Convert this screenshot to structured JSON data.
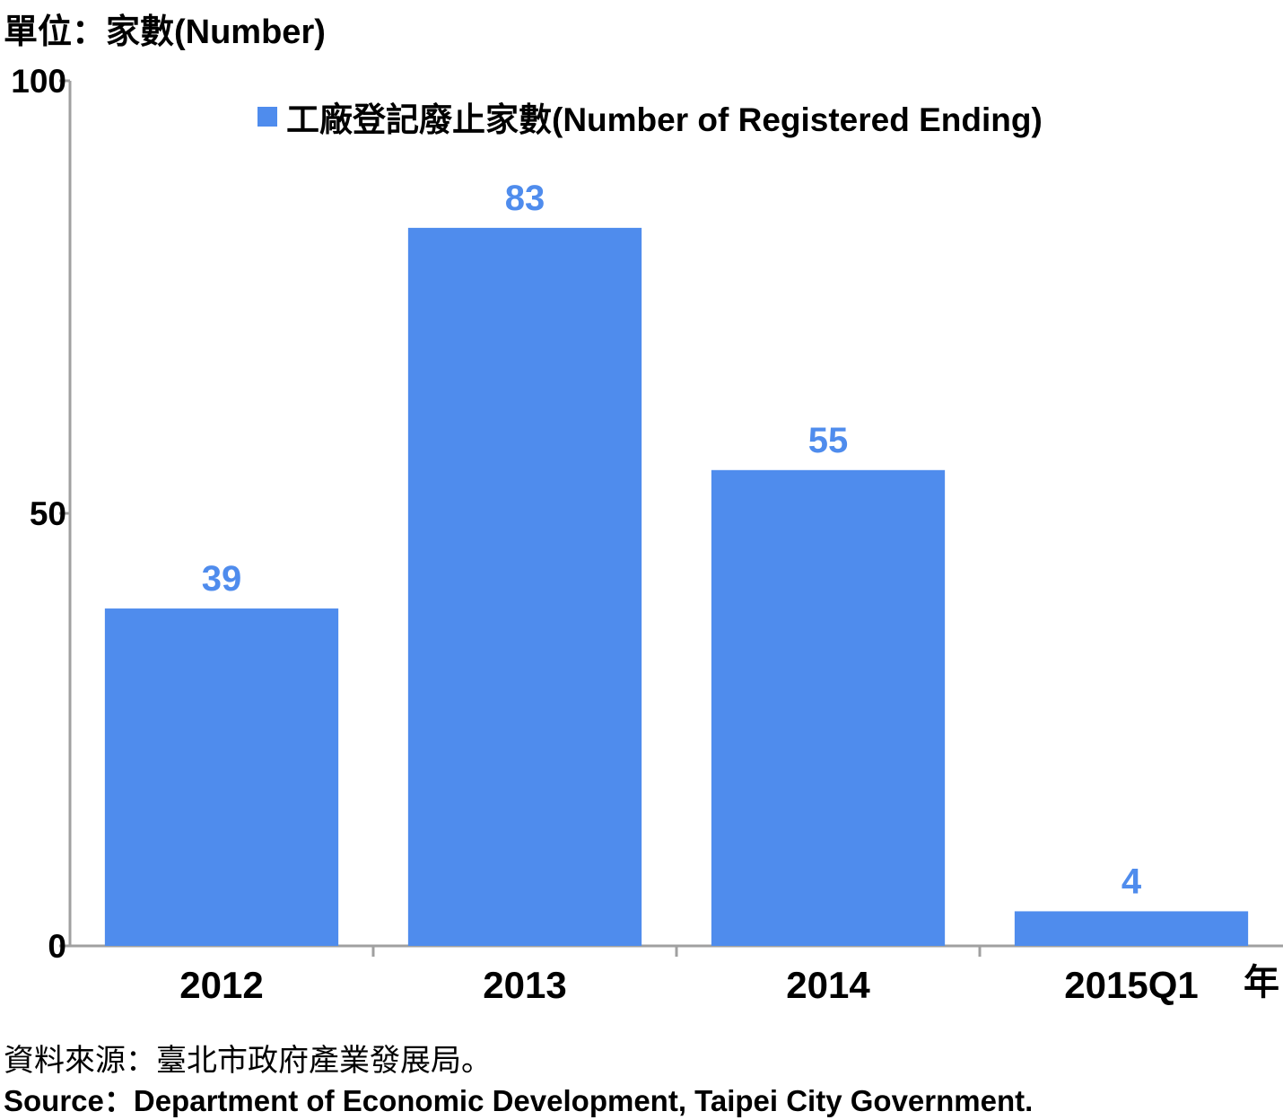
{
  "chart_data": {
    "type": "bar",
    "unit_label": "單位：家數(Number)",
    "categories": [
      "2012",
      "2013",
      "2014",
      "2015Q1"
    ],
    "x_axis_suffix": "年",
    "series": [
      {
        "name": "工廠登記廢止家數(Number of Registered Ending)",
        "values": [
          39,
          83,
          55,
          4
        ]
      }
    ],
    "data_labels": [
      "39",
      "83",
      "55",
      "4"
    ],
    "ylim": [
      0,
      100
    ],
    "yticks": [
      0,
      50,
      100
    ],
    "legend_position": "top",
    "grid": false,
    "colors": {
      "bar": "#4f8ced",
      "data_label": "#4f8ced",
      "axis": "#a0a0a0",
      "text": "#000000"
    }
  },
  "source": {
    "zh": "資料來源：臺北市政府產業發展局。",
    "en": "Source：Department of Economic Development, Taipei City Government."
  }
}
